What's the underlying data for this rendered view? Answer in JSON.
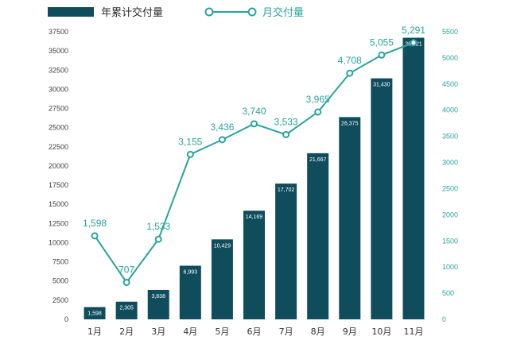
{
  "chart_data": {
    "type": "bar",
    "categories": [
      "1月",
      "2月",
      "3月",
      "4月",
      "5月",
      "6月",
      "7月",
      "8月",
      "9月",
      "10月",
      "11月"
    ],
    "series": [
      {
        "name": "年累计交付量",
        "type": "bar",
        "axis": "left",
        "values": [
          1598,
          2305,
          3838,
          6993,
          10429,
          14169,
          17702,
          21667,
          26375,
          31430,
          36721
        ],
        "labels": [
          "1,598",
          "2,305",
          "3,838",
          "6,993",
          "10,429",
          "14,169",
          "17,702",
          "21,667",
          "26,375",
          "31,430",
          "36,721"
        ]
      },
      {
        "name": "月交付量",
        "type": "line",
        "axis": "right",
        "values": [
          1598,
          707,
          1533,
          3155,
          3436,
          3740,
          3533,
          3965,
          4708,
          5055,
          5291
        ],
        "labels": [
          "1,598",
          "707",
          "1,533",
          "3,155",
          "3,436",
          "3,740",
          "3,533",
          "3,965",
          "4,708",
          "5,055",
          "5,291"
        ]
      }
    ],
    "left_axis": {
      "ylim": [
        0,
        37500
      ],
      "ticks": [
        "0",
        "2500",
        "5000",
        "7500",
        "10000",
        "12500",
        "15000",
        "17500",
        "20000",
        "22500",
        "25000",
        "27500",
        "30000",
        "32500",
        "35000",
        "37500"
      ]
    },
    "right_axis": {
      "ylim": [
        0,
        5500
      ],
      "ticks": [
        "0",
        "500",
        "1000",
        "1500",
        "2000",
        "2500",
        "3000",
        "3500",
        "4000",
        "4500",
        "5000",
        "5500"
      ]
    },
    "grid": false,
    "legend_position": "top-left",
    "colors": {
      "bar": "#0f4c5c",
      "line": "#2aa39e",
      "left_ticks": "#404040",
      "right_ticks": "#2aa39e"
    }
  }
}
